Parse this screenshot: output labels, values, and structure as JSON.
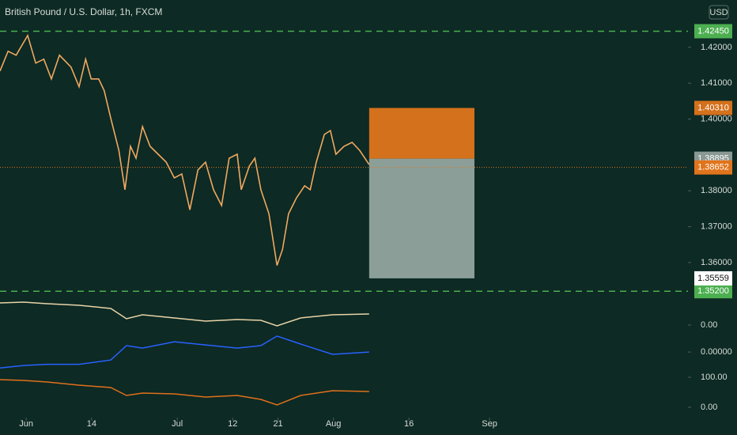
{
  "chart_data": [
    {
      "type": "line",
      "title": "British Pound / U.S. Dollar, 1h, FXCM",
      "currency": "USD",
      "color": "#f0a860",
      "x": [
        -5.2,
        -3.6,
        -2.0,
        0.3,
        1.9,
        3.5,
        5.0,
        6.6,
        8.9,
        10.5,
        11.8,
        12.9,
        14.4,
        15.5,
        16.8,
        18.4,
        19.6,
        20.7,
        21.8,
        23.1,
        24.6,
        26.2,
        27.8,
        29.4,
        30.9,
        32.5,
        34.1,
        35.6,
        37.2,
        38.8,
        40.3,
        41.9,
        42.7,
        44.3,
        45.4,
        46.6,
        48.2,
        49.8,
        50.9,
        52.1,
        53.7,
        55.3,
        56.4,
        57.6,
        59.2,
        60.4,
        61.5,
        63.1,
        64.7,
        66.2,
        68.1
      ],
      "values": [
        1.4134,
        1.4189,
        1.4178,
        1.4233,
        1.4156,
        1.4167,
        1.4112,
        1.4178,
        1.4145,
        1.409,
        1.4167,
        1.4112,
        1.4112,
        1.4079,
        1.4002,
        1.3913,
        1.3803,
        1.3924,
        1.3891,
        1.3979,
        1.3924,
        1.3902,
        1.388,
        1.3836,
        1.3847,
        1.3747,
        1.3858,
        1.388,
        1.3803,
        1.3759,
        1.3891,
        1.3902,
        1.3803,
        1.3869,
        1.3891,
        1.3803,
        1.3736,
        1.3592,
        1.3637,
        1.3736,
        1.3781,
        1.3814,
        1.3803,
        1.388,
        1.3957,
        1.3968,
        1.3902,
        1.3924,
        1.3935,
        1.3913,
        1.3873
      ],
      "xlim": [
        -5.2,
        131.4
      ],
      "xticks": [
        {
          "value": 0,
          "label": "Jun"
        },
        {
          "value": 13,
          "label": "14"
        },
        {
          "value": 30,
          "label": "Jul"
        },
        {
          "value": 41,
          "label": "12"
        },
        {
          "value": 50,
          "label": "21"
        },
        {
          "value": 61,
          "label": "Aug"
        },
        {
          "value": 76,
          "label": "16"
        },
        {
          "value": 92,
          "label": "Sep"
        }
      ],
      "ylim": [
        1.3494,
        1.4332
      ],
      "yticks": [
        {
          "value": 1.36,
          "label": "1.36000"
        },
        {
          "value": 1.37,
          "label": "1.37000"
        },
        {
          "value": 1.38,
          "label": "1.38000"
        },
        {
          "value": 1.4,
          "label": "1.40000"
        },
        {
          "value": 1.41,
          "label": "1.41000"
        },
        {
          "value": 1.42,
          "label": "1.42000"
        }
      ],
      "levels": [
        {
          "value": 1.4245,
          "label": "1.42450",
          "color": "#4caf50"
        },
        {
          "value": 1.352,
          "label": "1.35200",
          "color": "#4caf50"
        }
      ],
      "last_price": {
        "value": 1.38652,
        "label": "1.38652",
        "color": "#e0741c"
      },
      "position": {
        "x": [
          68.1,
          89.0
        ],
        "stop": {
          "value": 1.4031,
          "label": "1.40310",
          "color": "#d4711c"
        },
        "entry": {
          "value": 1.38895,
          "label": "1.38895",
          "color": "#8a9994"
        },
        "target": {
          "value": 1.35559,
          "label": "1.35559",
          "color": "#8c9e98"
        }
      }
    },
    {
      "type": "line",
      "x": [
        -5.2,
        -0.5,
        4.2,
        10.5,
        16.8,
        19.9,
        23.1,
        29.4,
        35.6,
        41.9,
        46.6,
        49.8,
        54.5,
        60.8,
        68.1
      ],
      "series": [
        {
          "color": "#e8d4a8",
          "ylim": [
            -326.3,
            81.6
          ],
          "yticks": [
            {
              "value": 0,
              "label": "0.00"
            }
          ],
          "values": [
            73.7,
            76.3,
            71.1,
            65.8,
            55.3,
            21.1,
            34.2,
            23.7,
            13.2,
            18.4,
            15.8,
            -2.6,
            23.7,
            34.2,
            36.8
          ]
        },
        {
          "color": "#2962ff",
          "ylim": [
            -0.0058,
            0.0042
          ],
          "yticks": [
            {
              "value": 0,
              "label": "0.00000"
            }
          ],
          "values": [
            -0.0013,
            -0.0011,
            -0.001,
            -0.001,
            -0.00065,
            0.00052,
            0.00032,
            0.00084,
            0.00058,
            0.00032,
            0.00052,
            0.0013,
            0.00065,
            -0.00019,
            0
          ]
        },
        {
          "color": "#e0701b",
          "ylim": [
            -52.6,
            355.3
          ],
          "yticks": [
            {
              "value": 100,
              "label": "100.00"
            },
            {
              "value": 0,
              "label": "0.00"
            }
          ],
          "values": [
            92.1,
            89.5,
            84.2,
            73.7,
            65.8,
            39.5,
            47.4,
            44.7,
            34.2,
            39.5,
            26.3,
            7.9,
            39.5,
            55.3,
            52.6
          ]
        }
      ]
    }
  ]
}
